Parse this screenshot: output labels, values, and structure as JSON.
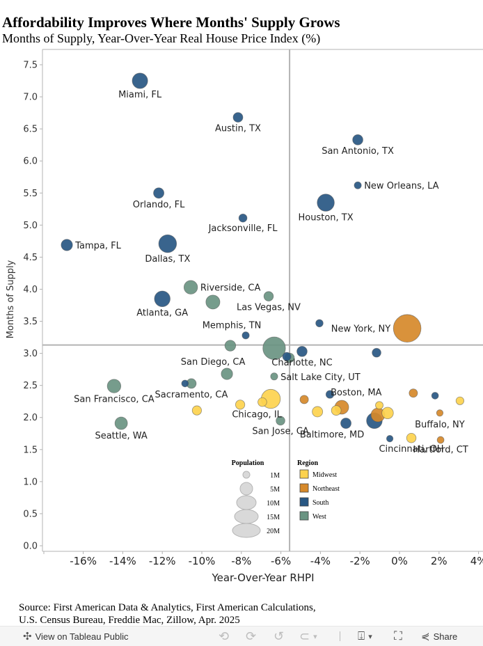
{
  "header": {
    "title": "Affordability Improves Where Months' Supply Grows",
    "subtitle": "Months of Supply, Year-Over-Year Real House Price Index (%)"
  },
  "colors": {
    "Midwest": "#fdd24e",
    "Northeast": "#d6892a",
    "South": "#285783",
    "West": "#6a9482",
    "reference_line": "#b3b3b3",
    "axis": "#b3b3b3",
    "size_legend": "#d9d9d9"
  },
  "chart_data": {
    "type": "scatter",
    "title": "Affordability Improves Where Months' Supply Grows",
    "subtitle": "Months of Supply, Year-Over-Year Real House Price Index (%)",
    "xlabel": "Year-Over-Year RHPI",
    "ylabel": "Months of Supply",
    "xlim": [
      -18,
      4.2
    ],
    "ylim": [
      0,
      7.75
    ],
    "x_ticks": [
      -16,
      -14,
      -12,
      -10,
      -8,
      -6,
      -4,
      -2,
      0,
      2,
      4
    ],
    "x_tick_labels": [
      "-16%",
      "-14%",
      "-12%",
      "-10%",
      "-8%",
      "-6%",
      "-4%",
      "-2%",
      "0%",
      "2%",
      "4%"
    ],
    "y_ticks": [
      0,
      0.5,
      1,
      1.5,
      2,
      2.5,
      3,
      3.5,
      4,
      4.5,
      5,
      5.5,
      6,
      6.5,
      7,
      7.5
    ],
    "y_tick_labels": [
      "0.0",
      "0.5",
      "1.0",
      "1.5",
      "2.0",
      "2.5",
      "3.0",
      "3.5",
      "4.0",
      "4.5",
      "5.0",
      "5.5",
      "6.0",
      "6.5",
      "7.0",
      "7.5"
    ],
    "grid": false,
    "reference_lines": {
      "x": -5.56,
      "y": 3.13
    },
    "size_field": "Population",
    "color_field": "Region",
    "points": [
      {
        "label": "Miami, FL",
        "x": -13.13,
        "y": 7.25,
        "region": "South",
        "pop": 6.1,
        "lpos": "below"
      },
      {
        "label": "Austin, TX",
        "x": -8.17,
        "y": 6.68,
        "region": "South",
        "pop": 2.4,
        "lpos": "below"
      },
      {
        "label": "San Antonio, TX",
        "x": -2.11,
        "y": 6.33,
        "region": "South",
        "pop": 2.7,
        "lpos": "below"
      },
      {
        "label": "New Orleans, LA",
        "x": -2.11,
        "y": 5.62,
        "region": "South",
        "pop": 1.3,
        "lpos": "right"
      },
      {
        "label": "Orlando, FL",
        "x": -12.18,
        "y": 5.5,
        "region": "South",
        "pop": 2.8,
        "lpos": "below"
      },
      {
        "label": "Houston, TX",
        "x": -3.73,
        "y": 5.35,
        "region": "South",
        "pop": 7.5,
        "lpos": "below"
      },
      {
        "label": "Jacksonville, FL",
        "x": -7.92,
        "y": 5.11,
        "region": "South",
        "pop": 1.7,
        "lpos": "below"
      },
      {
        "label": "Tampa, FL",
        "x": -16.83,
        "y": 4.69,
        "region": "South",
        "pop": 3.3,
        "lpos": "right"
      },
      {
        "label": "Dallas, TX",
        "x": -11.73,
        "y": 4.71,
        "region": "South",
        "pop": 8.1,
        "lpos": "below"
      },
      {
        "label": "Riverside, CA",
        "x": -10.56,
        "y": 4.03,
        "region": "West",
        "pop": 4.7,
        "lpos": "right"
      },
      {
        "label": "Atlanta, GA",
        "x": -12.0,
        "y": 3.85,
        "region": "South",
        "pop": 6.3,
        "lpos": "below"
      },
      {
        "label": "",
        "x": -9.44,
        "y": 3.8,
        "region": "West",
        "pop": 5.0,
        "lpos": "none"
      },
      {
        "label": "Las Vegas, NV",
        "x": -6.62,
        "y": 3.89,
        "region": "West",
        "pop": 2.3,
        "lpos": "below"
      },
      {
        "label": "",
        "x": -4.05,
        "y": 3.47,
        "region": "South",
        "pop": 1.4,
        "lpos": "none"
      },
      {
        "label": "New York, NY",
        "x": 0.39,
        "y": 3.39,
        "region": "Northeast",
        "pop": 19.5,
        "lpos": "left"
      },
      {
        "label": "Memphis, TN",
        "x": -7.78,
        "y": 3.28,
        "region": "South",
        "pop": 1.3,
        "lpos": "above"
      },
      {
        "label": "",
        "x": -8.56,
        "y": 3.12,
        "region": "West",
        "pop": 3.0,
        "lpos": "none"
      },
      {
        "label": "",
        "x": -6.34,
        "y": 3.08,
        "region": "West",
        "pop": 13.0,
        "lpos": "none"
      },
      {
        "label": "Charlotte, NC",
        "x": -4.93,
        "y": 3.03,
        "region": "South",
        "pop": 2.7,
        "lpos": "below"
      },
      {
        "label": "",
        "x": -1.16,
        "y": 3.01,
        "region": "South",
        "pop": 2.0,
        "lpos": "none"
      },
      {
        "label": "",
        "x": -5.7,
        "y": 2.95,
        "region": "South",
        "pop": 1.8,
        "lpos": "none"
      },
      {
        "label": "",
        "x": -5.56,
        "y": 2.93,
        "region": "West",
        "pop": 2.3,
        "lpos": "none"
      },
      {
        "label": "San Diego, CA",
        "x": -8.73,
        "y": 2.68,
        "region": "West",
        "pop": 3.3,
        "lpos": "above"
      },
      {
        "label": "Salt Lake City, UT",
        "x": -6.34,
        "y": 2.64,
        "region": "West",
        "pop": 1.3,
        "lpos": "right"
      },
      {
        "label": "San Francisco, CA",
        "x": -14.44,
        "y": 2.49,
        "region": "West",
        "pop": 4.7,
        "lpos": "below"
      },
      {
        "label": "",
        "x": -10.85,
        "y": 2.53,
        "region": "South",
        "pop": 1.2,
        "lpos": "none"
      },
      {
        "label": "Sacramento, CA",
        "x": -10.53,
        "y": 2.53,
        "region": "West",
        "pop": 2.4,
        "lpos": "below"
      },
      {
        "label": "",
        "x": -10.25,
        "y": 2.11,
        "region": "Midwest",
        "pop": 2.2,
        "lpos": "none"
      },
      {
        "label": "",
        "x": -8.06,
        "y": 2.2,
        "region": "Midwest",
        "pop": 2.2,
        "lpos": "none"
      },
      {
        "label": "",
        "x": -6.94,
        "y": 2.24,
        "region": "Midwest",
        "pop": 2.0,
        "lpos": "none"
      },
      {
        "label": "Chicago, IL",
        "x": -6.51,
        "y": 2.29,
        "region": "Midwest",
        "pop": 9.3,
        "lpos": "belowleft"
      },
      {
        "label": "San Jose, CA",
        "x": -6.02,
        "y": 1.95,
        "region": "West",
        "pop": 2.0,
        "lpos": "below"
      },
      {
        "label": "Seattle, WA",
        "x": -14.08,
        "y": 1.91,
        "region": "West",
        "pop": 4.0,
        "lpos": "below"
      },
      {
        "label": "",
        "x": -4.82,
        "y": 2.28,
        "region": "Northeast",
        "pop": 1.8,
        "lpos": "none"
      },
      {
        "label": "",
        "x": -3.52,
        "y": 2.36,
        "region": "South",
        "pop": 1.6,
        "lpos": "none"
      },
      {
        "label": "",
        "x": -4.15,
        "y": 2.09,
        "region": "Midwest",
        "pop": 2.8,
        "lpos": "none"
      },
      {
        "label": "",
        "x": -2.92,
        "y": 2.16,
        "region": "Northeast",
        "pop": 4.9,
        "lpos": "none"
      },
      {
        "label": "",
        "x": -3.2,
        "y": 2.11,
        "region": "Midwest",
        "pop": 2.4,
        "lpos": "none"
      },
      {
        "label": "Boston, MA",
        "x": -0.9,
        "y": 2.4,
        "region": "Northeast",
        "pop": 0,
        "lpos": "textonly"
      },
      {
        "label": "",
        "x": 0.7,
        "y": 2.38,
        "region": "Northeast",
        "pop": 1.8,
        "lpos": "none"
      },
      {
        "label": "",
        "x": 1.8,
        "y": 2.34,
        "region": "South",
        "pop": 1.2,
        "lpos": "none"
      },
      {
        "label": "",
        "x": 3.06,
        "y": 2.26,
        "region": "Midwest",
        "pop": 1.6,
        "lpos": "none"
      },
      {
        "label": "",
        "x": -1.02,
        "y": 2.19,
        "region": "Midwest",
        "pop": 1.5,
        "lpos": "none"
      },
      {
        "label": "",
        "x": -1.27,
        "y": 1.95,
        "region": "South",
        "pop": 6.3,
        "lpos": "none"
      },
      {
        "label": "",
        "x": -1.09,
        "y": 2.04,
        "region": "Northeast",
        "pop": 4.9,
        "lpos": "none"
      },
      {
        "label": "",
        "x": -0.6,
        "y": 2.07,
        "region": "Midwest",
        "pop": 3.4,
        "lpos": "none"
      },
      {
        "label": "Buffalo, NY",
        "x": 2.04,
        "y": 2.07,
        "region": "Northeast",
        "pop": 1.1,
        "lpos": "belowcenter"
      },
      {
        "label": "Baltimore, MD",
        "x": -2.71,
        "y": 1.91,
        "region": "South",
        "pop": 2.8,
        "lpos": "belowleft"
      },
      {
        "label": "",
        "x": -0.49,
        "y": 1.67,
        "region": "South",
        "pop": 1.1,
        "lpos": "none"
      },
      {
        "label": "Cincinnati, OH",
        "x": 0.6,
        "y": 1.68,
        "region": "Midwest",
        "pop": 2.3,
        "lpos": "below"
      },
      {
        "label": "Hartford, CT",
        "x": 2.08,
        "y": 1.65,
        "region": "Northeast",
        "pop": 1.2,
        "lpos": "below"
      }
    ],
    "legends": {
      "size": {
        "title": "Population",
        "entries": [
          {
            "label": "1M",
            "value": 1
          },
          {
            "label": "5M",
            "value": 5
          },
          {
            "label": "10M",
            "value": 10
          },
          {
            "label": "15M",
            "value": 15
          },
          {
            "label": "20M",
            "value": 20
          }
        ]
      },
      "color": {
        "title": "Region",
        "entries": [
          "Midwest",
          "Northeast",
          "South",
          "West"
        ]
      }
    }
  },
  "footer": {
    "source_line1": "Source: First American Data & Analytics, First American Calculations,",
    "source_line2": "U.S. Census Bureau, Freddie Mac, Zillow, Apr. 2025"
  },
  "toolbar": {
    "view_label": "View on Tableau Public",
    "undo_icon": "undo-icon",
    "redo_icon": "redo-icon",
    "revert_icon": "revert-icon",
    "refresh_icon": "refresh-icon",
    "download_icon": "download-icon",
    "fullscreen_icon": "fullscreen-icon",
    "share_label": "Share",
    "undo_glyph": "⟲",
    "redo_glyph": "⟳",
    "revert_glyph": "↺",
    "pause_glyph": "⊂",
    "caret_glyph": "▾",
    "download_glyph": "⍗",
    "fullscreen_glyph": "⛶",
    "share_glyph": "⋞",
    "tableau_glyph": "✣"
  }
}
